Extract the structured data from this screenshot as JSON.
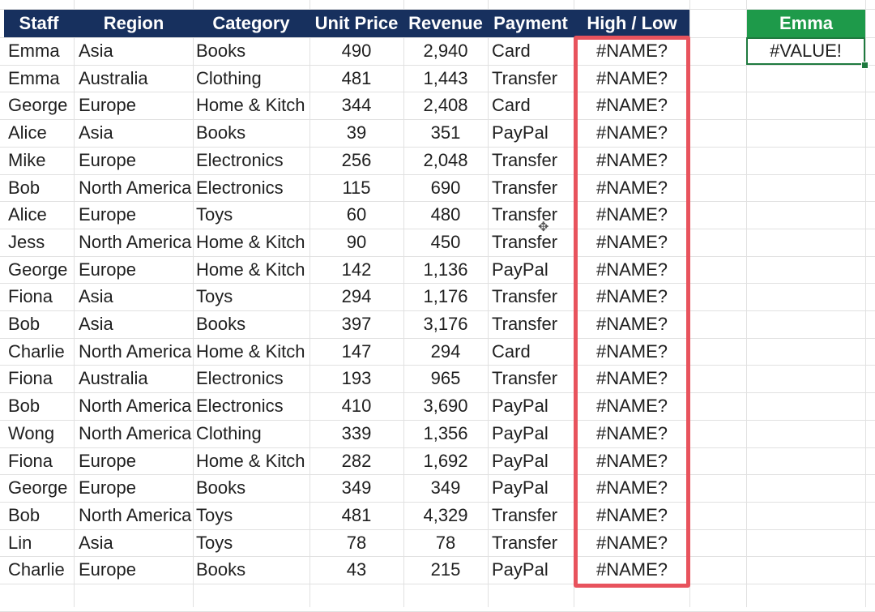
{
  "headers": {
    "staff": "Staff",
    "region": "Region",
    "category": "Category",
    "unit_price": "Unit Price",
    "revenue": "Revenue",
    "payment": "Payment",
    "high_low": "High / Low"
  },
  "side": {
    "header": "Emma",
    "value": "#VALUE!"
  },
  "colors": {
    "header_bg": "#17305e",
    "side_header_bg": "#1e9a4a",
    "highlight_border": "#e8535d"
  },
  "rows": [
    {
      "staff": "Emma",
      "region": "Asia",
      "category": "Books",
      "unit_price": "490",
      "revenue": "2,940",
      "payment": "Card",
      "high_low": "#NAME?"
    },
    {
      "staff": "Emma",
      "region": "Australia",
      "category": "Clothing",
      "unit_price": "481",
      "revenue": "1,443",
      "payment": "Transfer",
      "high_low": "#NAME?"
    },
    {
      "staff": "George",
      "region": "Europe",
      "category": "Home & Kitch",
      "unit_price": "344",
      "revenue": "2,408",
      "payment": "Card",
      "high_low": "#NAME?"
    },
    {
      "staff": "Alice",
      "region": "Asia",
      "category": "Books",
      "unit_price": "39",
      "revenue": "351",
      "payment": "PayPal",
      "high_low": "#NAME?"
    },
    {
      "staff": "Mike",
      "region": "Europe",
      "category": "Electronics",
      "unit_price": "256",
      "revenue": "2,048",
      "payment": "Transfer",
      "high_low": "#NAME?"
    },
    {
      "staff": "Bob",
      "region": "North America",
      "category": "Electronics",
      "unit_price": "115",
      "revenue": "690",
      "payment": "Transfer",
      "high_low": "#NAME?"
    },
    {
      "staff": "Alice",
      "region": "Europe",
      "category": "Toys",
      "unit_price": "60",
      "revenue": "480",
      "payment": "Transfer",
      "high_low": "#NAME?"
    },
    {
      "staff": "Jess",
      "region": "North America",
      "category": "Home & Kitch",
      "unit_price": "90",
      "revenue": "450",
      "payment": "Transfer",
      "high_low": "#NAME?"
    },
    {
      "staff": "George",
      "region": "Europe",
      "category": "Home & Kitch",
      "unit_price": "142",
      "revenue": "1,136",
      "payment": "PayPal",
      "high_low": "#NAME?"
    },
    {
      "staff": "Fiona",
      "region": "Asia",
      "category": "Toys",
      "unit_price": "294",
      "revenue": "1,176",
      "payment": "Transfer",
      "high_low": "#NAME?"
    },
    {
      "staff": "Bob",
      "region": "Asia",
      "category": "Books",
      "unit_price": "397",
      "revenue": "3,176",
      "payment": "Transfer",
      "high_low": "#NAME?"
    },
    {
      "staff": "Charlie",
      "region": "North America",
      "category": "Home & Kitch",
      "unit_price": "147",
      "revenue": "294",
      "payment": "Card",
      "high_low": "#NAME?"
    },
    {
      "staff": "Fiona",
      "region": "Australia",
      "category": "Electronics",
      "unit_price": "193",
      "revenue": "965",
      "payment": "Transfer",
      "high_low": "#NAME?"
    },
    {
      "staff": "Bob",
      "region": "North America",
      "category": "Electronics",
      "unit_price": "410",
      "revenue": "3,690",
      "payment": "PayPal",
      "high_low": "#NAME?"
    },
    {
      "staff": "Wong",
      "region": "North America",
      "category": "Clothing",
      "unit_price": "339",
      "revenue": "1,356",
      "payment": "PayPal",
      "high_low": "#NAME?"
    },
    {
      "staff": "Fiona",
      "region": "Europe",
      "category": "Home & Kitch",
      "unit_price": "282",
      "revenue": "1,692",
      "payment": "PayPal",
      "high_low": "#NAME?"
    },
    {
      "staff": "George",
      "region": "Europe",
      "category": "Books",
      "unit_price": "349",
      "revenue": "349",
      "payment": "PayPal",
      "high_low": "#NAME?"
    },
    {
      "staff": "Bob",
      "region": "North America",
      "category": "Toys",
      "unit_price": "481",
      "revenue": "4,329",
      "payment": "Transfer",
      "high_low": "#NAME?"
    },
    {
      "staff": "Lin",
      "region": "Asia",
      "category": "Toys",
      "unit_price": "78",
      "revenue": "78",
      "payment": "Transfer",
      "high_low": "#NAME?"
    },
    {
      "staff": "Charlie",
      "region": "Europe",
      "category": "Books",
      "unit_price": "43",
      "revenue": "215",
      "payment": "PayPal",
      "high_low": "#NAME?"
    }
  ]
}
